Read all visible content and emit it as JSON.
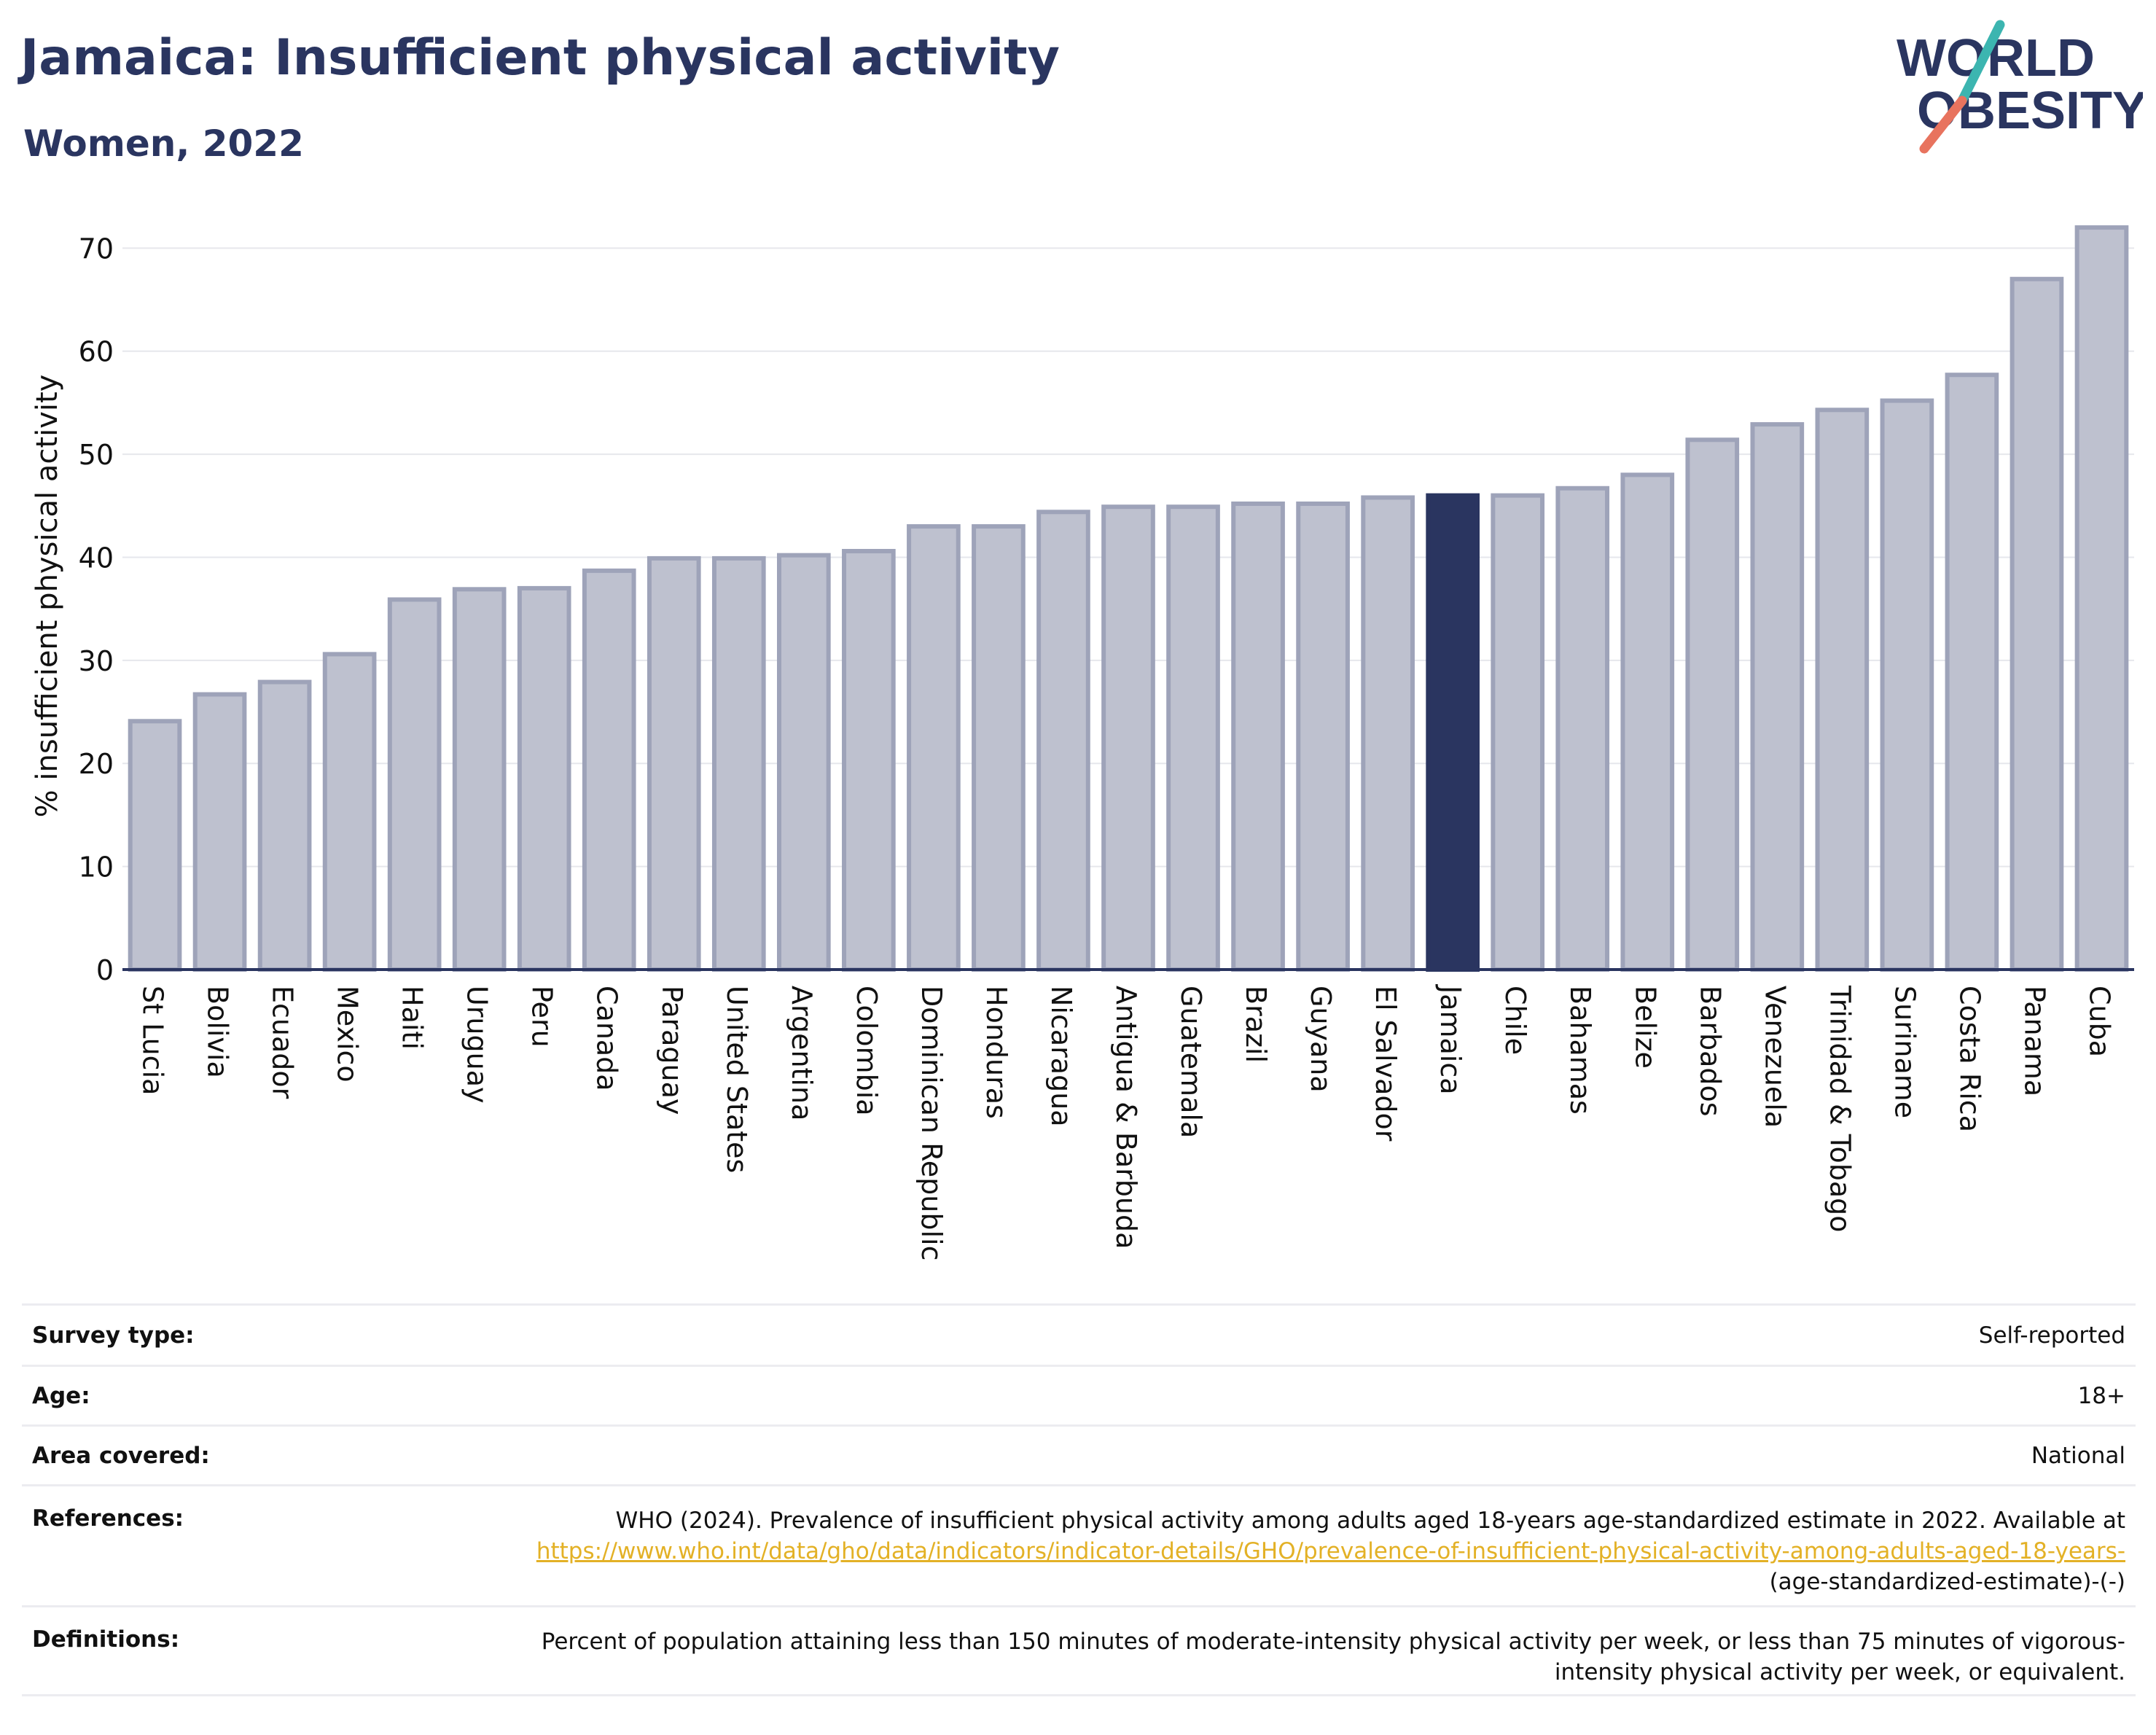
{
  "header": {
    "title": "Jamaica: Insufficient physical activity",
    "subtitle": "Women, 2022"
  },
  "logo": {
    "line1": "WORLD",
    "line2": "OBESITY"
  },
  "colors": {
    "bar_default": "#bec1cf",
    "bar_default_stroke": "#9ea3b9",
    "bar_highlight": "#2a3560",
    "text": "#2a3560",
    "link": "#e3b126"
  },
  "chart_data": {
    "type": "bar",
    "ylabel": "% insufficient physical activity",
    "ylim": [
      0,
      72.5
    ],
    "yticks": [
      0,
      10,
      20,
      30,
      40,
      50,
      60,
      70
    ],
    "grid": true,
    "highlight": "Jamaica",
    "categories": [
      "St Lucia",
      "Bolivia",
      "Ecuador",
      "Mexico",
      "Haiti",
      "Uruguay",
      "Peru",
      "Canada",
      "Paraguay",
      "United States",
      "Argentina",
      "Colombia",
      "Dominican Republic",
      "Honduras",
      "Nicaragua",
      "Antigua & Barbuda",
      "Guatemala",
      "Brazil",
      "Guyana",
      "El Salvador",
      "Jamaica",
      "Chile",
      "Bahamas",
      "Belize",
      "Barbados",
      "Venezuela",
      "Trinidad & Tobago",
      "Suriname",
      "Costa Rica",
      "Panama",
      "Cuba"
    ],
    "values": [
      24.1,
      26.7,
      27.9,
      30.6,
      35.9,
      36.9,
      37.0,
      38.7,
      39.9,
      39.9,
      40.2,
      40.6,
      43.0,
      43.0,
      44.4,
      44.9,
      44.9,
      45.2,
      45.2,
      45.8,
      46.0,
      46.0,
      46.7,
      48.0,
      51.4,
      52.9,
      54.3,
      55.2,
      57.7,
      67.0,
      72.0
    ]
  },
  "meta": {
    "survey_type": {
      "label": "Survey type:",
      "value": "Self-reported"
    },
    "age": {
      "label": "Age:",
      "value": "18+"
    },
    "area": {
      "label": "Area covered:",
      "value": "National"
    },
    "references": {
      "label": "References:",
      "text": "WHO (2024). Prevalence of insufficient physical activity among adults aged 18-years age-standardized estimate in 2022. Available at ",
      "link": "https://www.who.int/data/gho/data/indicators/indicator-details/GHO/prevalence-of-insufficient-physical-activity-among-adults-aged-18-years-",
      "suffix": "(age-standardized-estimate)-(-)"
    },
    "definitions": {
      "label": "Definitions:",
      "value": "Percent of population attaining less than 150 minutes of moderate-intensity physical activity per week, or less than 75 minutes of vigorous-intensity physical activity per week, or equivalent."
    }
  }
}
